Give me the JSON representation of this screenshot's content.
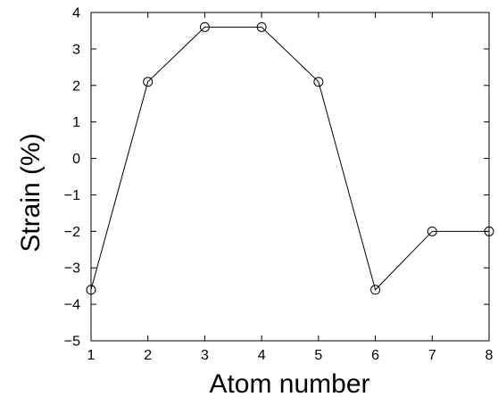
{
  "chart_data": {
    "type": "line",
    "title": "",
    "xlabel": "Atom number",
    "ylabel": "Strain (%)",
    "xlim": [
      1,
      8
    ],
    "ylim": [
      -5,
      4
    ],
    "xticks": [
      1,
      2,
      3,
      4,
      5,
      6,
      7,
      8
    ],
    "yticks": [
      -5,
      -4,
      -3,
      -2,
      -1,
      0,
      1,
      2,
      3,
      4
    ],
    "ytick_labels": [
      "−5",
      "−4",
      "−3",
      "−2",
      "−1",
      "0",
      "1",
      "2",
      "3",
      "4"
    ],
    "grid": false,
    "marker": "open-circle",
    "line_color": "#000000",
    "series": [
      {
        "x": [
          1,
          2,
          3,
          4,
          5,
          6,
          7,
          8
        ],
        "values": [
          -3.6,
          2.1,
          3.6,
          3.6,
          2.1,
          -3.6,
          -2.0,
          -2.0
        ]
      }
    ]
  }
}
